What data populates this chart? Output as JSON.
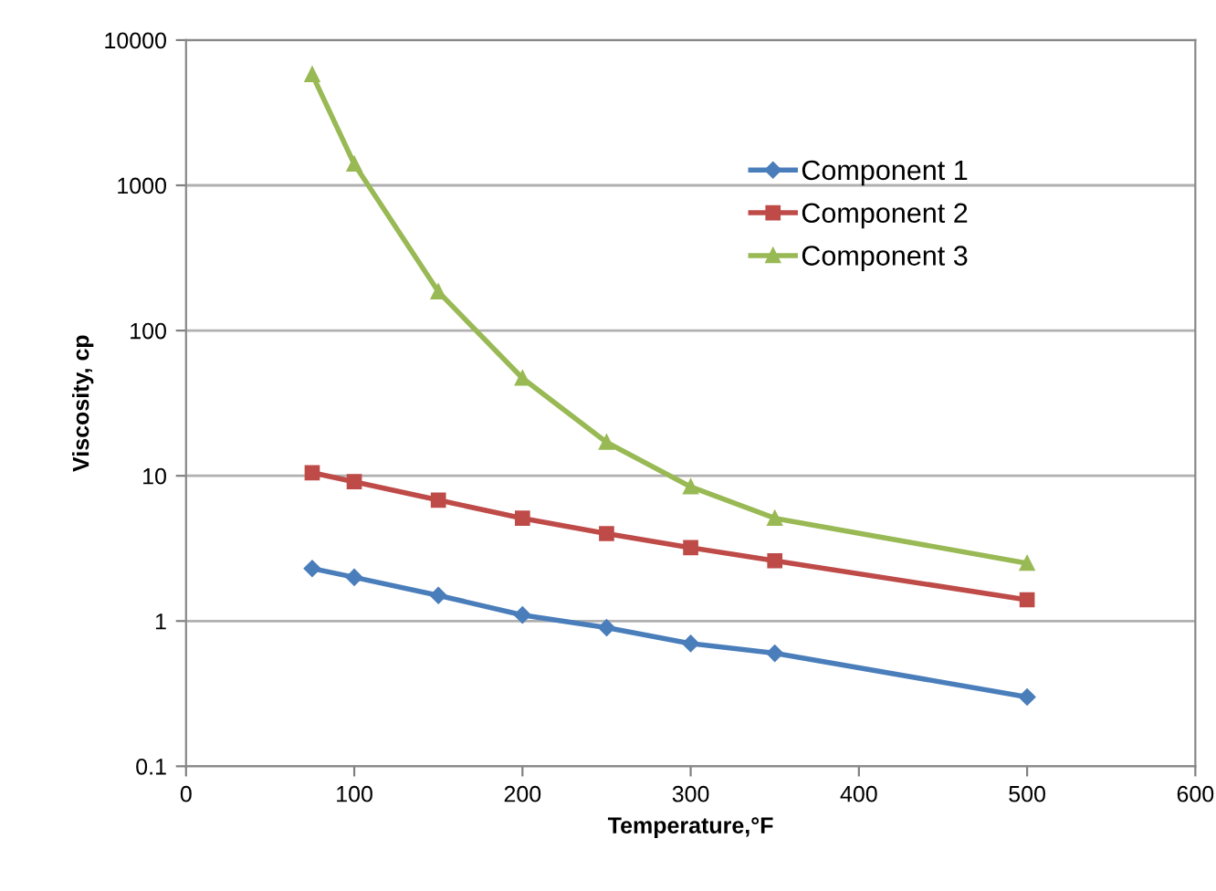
{
  "chart_data": {
    "type": "line",
    "xlabel": "Temperature,°F",
    "ylabel": "Viscosity, cp",
    "x": [
      75,
      100,
      150,
      200,
      250,
      300,
      350,
      500
    ],
    "series": [
      {
        "name": "Component 1",
        "color": "#4a7ebb",
        "marker": "diamond",
        "values": [
          2.3,
          2.0,
          1.5,
          1.1,
          0.9,
          0.7,
          0.6,
          0.3
        ]
      },
      {
        "name": "Component 2",
        "color": "#be4b48",
        "marker": "square",
        "values": [
          10.5,
          9.1,
          6.8,
          5.1,
          4.0,
          3.2,
          2.6,
          1.4
        ]
      },
      {
        "name": "Component 3",
        "color": "#98b954",
        "marker": "triangle",
        "values": [
          5800,
          1400,
          185,
          47,
          17,
          8.4,
          5.1,
          2.5
        ]
      }
    ],
    "log": "y",
    "xlim": [
      0,
      600
    ],
    "xticks": [
      0,
      100,
      200,
      300,
      400,
      500,
      600
    ],
    "ylim": [
      0.1,
      10000
    ],
    "yticks": [
      0.1,
      1,
      10,
      100,
      1000,
      10000
    ],
    "grid": "y",
    "legend": "top right",
    "line_style": "solid"
  }
}
